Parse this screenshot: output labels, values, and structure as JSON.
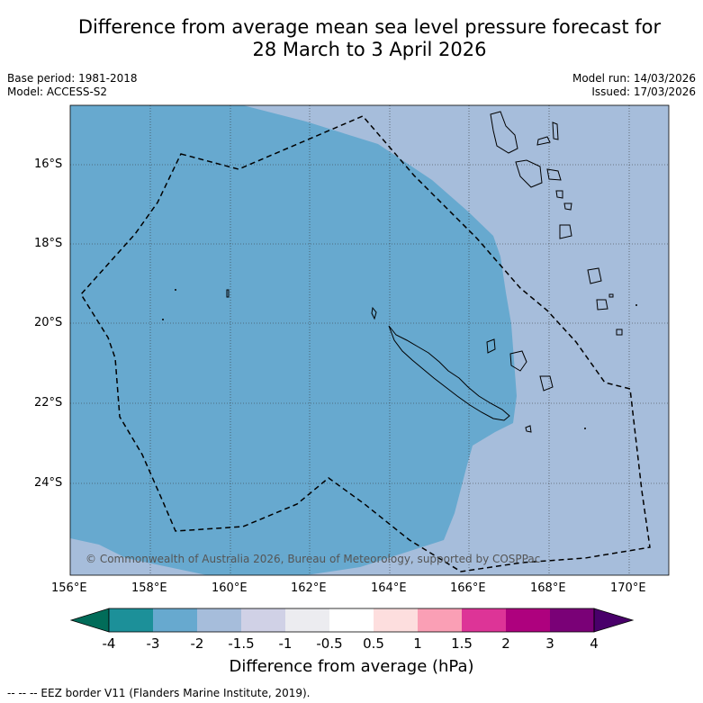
{
  "title": {
    "line1": "Difference from average mean sea level pressure forecast for",
    "line2": "28 March to 3 April 2026"
  },
  "meta": {
    "base_period": "Base period: 1981-2018",
    "model": "Model: ACCESS-S2",
    "model_run": "Model run: 14/03/2026",
    "issued": "Issued: 17/03/2026"
  },
  "map": {
    "lat_labels": [
      "16°S",
      "18°S",
      "20°S",
      "22°S",
      "24°S"
    ],
    "lon_labels": [
      "156°E",
      "158°E",
      "160°E",
      "162°E",
      "164°E",
      "166°E",
      "168°E",
      "170°E"
    ],
    "copyright": "© Commonwealth of Australia 2026, Bureau of Meteorology, supported by COSPPac",
    "fill_colors": {
      "minus3_to_minus2": "#67a9cf",
      "minus2_to_minus1_5": "#a6bddb"
    },
    "coast_color": "#000000"
  },
  "colorbar": {
    "tick_labels": [
      "-4",
      "-3",
      "-2",
      "-1.5",
      "-1",
      "-0.5",
      "0.5",
      "1",
      "1.5",
      "2",
      "3",
      "4"
    ],
    "colors": [
      "#016c59",
      "#1c9099",
      "#67a9cf",
      "#a6bddb",
      "#d0d1e6",
      "#ececf0",
      "#ffffff",
      "#fddede",
      "#fa9fb5",
      "#dd3497",
      "#ae017e",
      "#7a0177",
      "#49006a"
    ],
    "label": "Difference from average (hPa)"
  },
  "footnote": "--  --  -- EEZ border V11 (Flanders Marine Institute, 2019)."
}
